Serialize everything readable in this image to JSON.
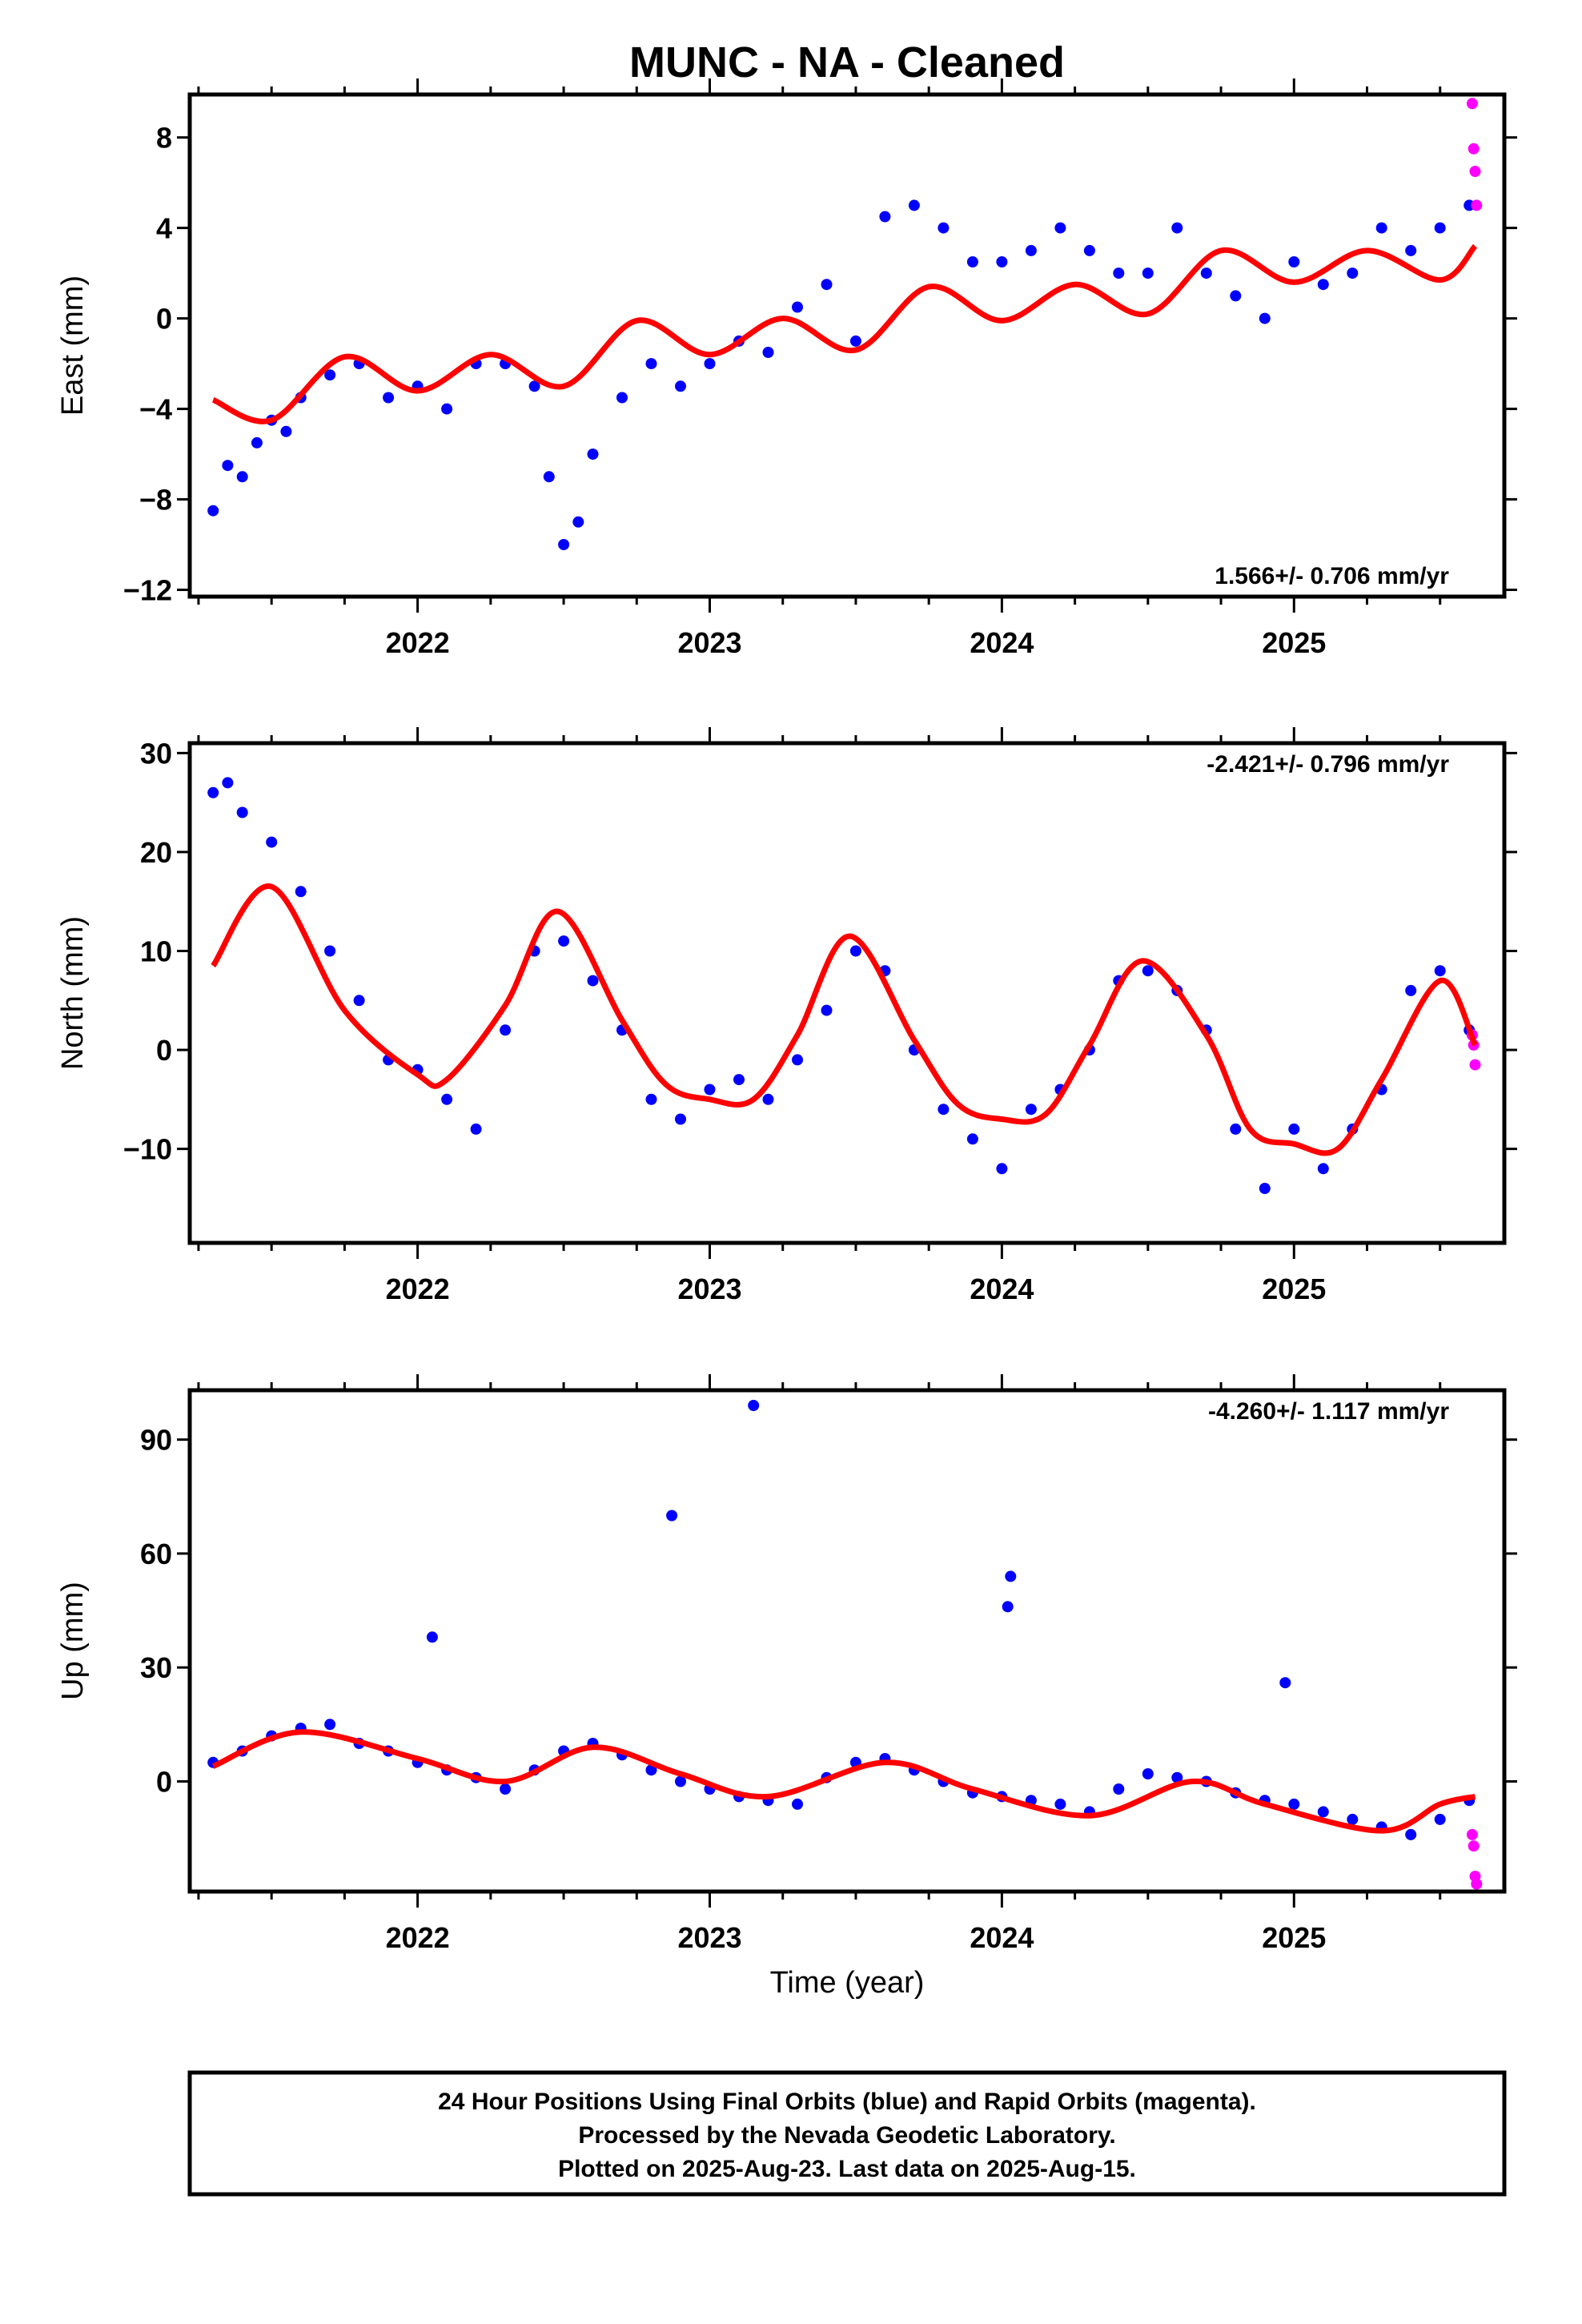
{
  "title": "MUNC  - NA - Cleaned",
  "xlabel": "Time (year)",
  "colors": {
    "final": "#0000ff",
    "rapid": "#ff00ff",
    "fit": "#ff0000"
  },
  "footer": {
    "line1": "24 Hour Positions Using Final Orbits (blue) and Rapid Orbits (magenta).",
    "line2": "Processed by the Nevada Geodetic Laboratory.",
    "line3": "Plotted on 2025-Aug-23. Last data on 2025-Aug-15."
  },
  "chart_data": [
    {
      "type": "scatter",
      "ylabel": "East (mm)",
      "rate": "1.566+/- 0.706 mm/yr",
      "xlim": [
        2021.22,
        2025.72
      ],
      "ylim": [
        -12.3,
        9.9
      ],
      "yticks": [
        -12,
        -8,
        -4,
        0,
        4,
        8
      ],
      "xticks": [
        2022,
        2023,
        2024,
        2025
      ],
      "fit": {
        "x": [
          2021.3,
          2021.5,
          2021.75,
          2022.0,
          2022.25,
          2022.5,
          2022.75,
          2023.0,
          2023.25,
          2023.5,
          2023.75,
          2024.0,
          2024.25,
          2024.5,
          2024.75,
          2025.0,
          2025.25,
          2025.5,
          2025.62
        ],
        "y": [
          -3.6,
          -4.5,
          -1.7,
          -3.2,
          -1.6,
          -3.0,
          -0.1,
          -1.6,
          0.0,
          -1.4,
          1.4,
          -0.1,
          1.5,
          0.2,
          3.0,
          1.6,
          3.0,
          1.7,
          3.2
        ]
      },
      "series": [
        {
          "name": "Final Orbits",
          "x": [
            2021.3,
            2021.35,
            2021.4,
            2021.45,
            2021.5,
            2021.55,
            2021.6,
            2021.7,
            2021.8,
            2021.9,
            2022.0,
            2022.1,
            2022.2,
            2022.3,
            2022.4,
            2022.45,
            2022.5,
            2022.55,
            2022.6,
            2022.7,
            2022.8,
            2022.9,
            2023.0,
            2023.1,
            2023.2,
            2023.3,
            2023.4,
            2023.5,
            2023.6,
            2023.7,
            2023.8,
            2023.9,
            2024.0,
            2024.1,
            2024.2,
            2024.3,
            2024.4,
            2024.5,
            2024.6,
            2024.7,
            2024.8,
            2024.9,
            2025.0,
            2025.1,
            2025.2,
            2025.3,
            2025.4,
            2025.5,
            2025.6
          ],
          "y": [
            -8.5,
            -6.5,
            -7.0,
            -5.5,
            -4.5,
            -5.0,
            -3.5,
            -2.5,
            -2.0,
            -3.5,
            -3.0,
            -4.0,
            -2.0,
            -2.0,
            -3.0,
            -7.0,
            -10.0,
            -9.0,
            -6.0,
            -3.5,
            -2.0,
            -3.0,
            -2.0,
            -1.0,
            -1.5,
            0.5,
            1.5,
            -1.0,
            4.5,
            5.0,
            4.0,
            2.5,
            2.5,
            3.0,
            4.0,
            3.0,
            2.0,
            2.0,
            4.0,
            2.0,
            1.0,
            0.0,
            2.5,
            1.5,
            2.0,
            4.0,
            3.0,
            4.0,
            5.0
          ]
        },
        {
          "name": "Rapid Orbits",
          "x": [
            2025.61,
            2025.615,
            2025.62,
            2025.625
          ],
          "y": [
            9.5,
            7.5,
            6.5,
            5.0
          ]
        }
      ]
    },
    {
      "type": "scatter",
      "ylabel": "North (mm)",
      "rate": "-2.421+/- 0.796 mm/yr",
      "xlim": [
        2021.22,
        2025.72
      ],
      "ylim": [
        -19.5,
        31.0
      ],
      "yticks": [
        -10,
        0,
        10,
        20,
        30
      ],
      "xticks": [
        2022,
        2023,
        2024,
        2025
      ],
      "fit": {
        "x": [
          2021.3,
          2021.5,
          2021.75,
          2022.0,
          2022.1,
          2022.3,
          2022.48,
          2022.7,
          2022.85,
          2023.0,
          2023.15,
          2023.3,
          2023.48,
          2023.7,
          2023.85,
          2024.0,
          2024.15,
          2024.3,
          2024.48,
          2024.7,
          2024.85,
          2025.0,
          2025.15,
          2025.3,
          2025.5,
          2025.62
        ],
        "y": [
          8.5,
          16.5,
          4.0,
          -2.5,
          -3.0,
          4.5,
          14.0,
          3.0,
          -3.5,
          -5.0,
          -5.0,
          1.5,
          11.5,
          1.0,
          -5.5,
          -7.0,
          -6.5,
          0.5,
          9.0,
          1.5,
          -8.0,
          -9.5,
          -10.0,
          -3.0,
          7.0,
          0.5
        ]
      },
      "series": [
        {
          "name": "Final Orbits",
          "x": [
            2021.3,
            2021.35,
            2021.4,
            2021.5,
            2021.6,
            2021.7,
            2021.8,
            2021.9,
            2022.0,
            2022.1,
            2022.2,
            2022.3,
            2022.4,
            2022.5,
            2022.6,
            2022.7,
            2022.8,
            2022.9,
            2023.0,
            2023.1,
            2023.2,
            2023.3,
            2023.4,
            2023.5,
            2023.6,
            2023.7,
            2023.8,
            2023.9,
            2024.0,
            2024.1,
            2024.2,
            2024.3,
            2024.4,
            2024.5,
            2024.6,
            2024.7,
            2024.8,
            2024.9,
            2025.0,
            2025.1,
            2025.2,
            2025.3,
            2025.4,
            2025.5,
            2025.6
          ],
          "y": [
            26.0,
            27.0,
            24.0,
            21.0,
            16.0,
            10.0,
            5.0,
            -1.0,
            -2.0,
            -5.0,
            -8.0,
            2.0,
            10.0,
            11.0,
            7.0,
            2.0,
            -5.0,
            -7.0,
            -4.0,
            -3.0,
            -5.0,
            -1.0,
            4.0,
            10.0,
            8.0,
            0.0,
            -6.0,
            -9.0,
            -12.0,
            -6.0,
            -4.0,
            0.0,
            7.0,
            8.0,
            6.0,
            2.0,
            -8.0,
            -14.0,
            -8.0,
            -12.0,
            -8.0,
            -4.0,
            6.0,
            8.0,
            2.0
          ]
        },
        {
          "name": "Rapid Orbits",
          "x": [
            2025.61,
            2025.615,
            2025.62
          ],
          "y": [
            1.5,
            0.5,
            -1.5
          ]
        }
      ]
    },
    {
      "type": "scatter",
      "ylabel": "Up (mm)",
      "rate": "-4.260+/- 1.117 mm/yr",
      "xlim": [
        2021.22,
        2025.72
      ],
      "ylim": [
        -29.0,
        103.0
      ],
      "yticks": [
        0,
        30,
        60,
        90
      ],
      "xticks": [
        2022,
        2023,
        2024,
        2025
      ],
      "fit": {
        "x": [
          2021.3,
          2021.6,
          2022.0,
          2022.3,
          2022.6,
          2022.9,
          2023.2,
          2023.6,
          2023.9,
          2024.3,
          2024.65,
          2024.9,
          2025.3,
          2025.5,
          2025.62
        ],
        "y": [
          4.0,
          13.0,
          6.0,
          0.0,
          9.0,
          2.0,
          -4.0,
          5.0,
          -2.0,
          -9.0,
          0.0,
          -6.0,
          -13.0,
          -6.0,
          -4.0
        ]
      },
      "series": [
        {
          "name": "Final Orbits",
          "x": [
            2021.3,
            2021.4,
            2021.5,
            2021.6,
            2021.7,
            2021.8,
            2021.9,
            2022.0,
            2022.05,
            2022.1,
            2022.2,
            2022.3,
            2022.4,
            2022.5,
            2022.6,
            2022.7,
            2022.8,
            2022.87,
            2022.9,
            2023.0,
            2023.1,
            2023.15,
            2023.2,
            2023.3,
            2023.4,
            2023.5,
            2023.6,
            2023.7,
            2023.8,
            2023.9,
            2024.0,
            2024.02,
            2024.03,
            2024.1,
            2024.2,
            2024.3,
            2024.4,
            2024.5,
            2024.6,
            2024.7,
            2024.8,
            2024.9,
            2024.97,
            2025.0,
            2025.1,
            2025.2,
            2025.3,
            2025.4,
            2025.5,
            2025.6
          ],
          "y": [
            5.0,
            8.0,
            12.0,
            14.0,
            15.0,
            10.0,
            8.0,
            5.0,
            38.0,
            3.0,
            1.0,
            -2.0,
            3.0,
            8.0,
            10.0,
            7.0,
            3.0,
            70.0,
            0.0,
            -2.0,
            -4.0,
            99.0,
            -5.0,
            -6.0,
            1.0,
            5.0,
            6.0,
            3.0,
            0.0,
            -3.0,
            -4.0,
            46.0,
            54.0,
            -5.0,
            -6.0,
            -8.0,
            -2.0,
            2.0,
            1.0,
            0.0,
            -3.0,
            -5.0,
            26.0,
            -6.0,
            -8.0,
            -10.0,
            -12.0,
            -14.0,
            -10.0,
            -5.0
          ]
        },
        {
          "name": "Rapid Orbits",
          "x": [
            2025.61,
            2025.615,
            2025.62,
            2025.625
          ],
          "y": [
            -14.0,
            -17.0,
            -25.0,
            -27.0
          ]
        }
      ]
    }
  ]
}
